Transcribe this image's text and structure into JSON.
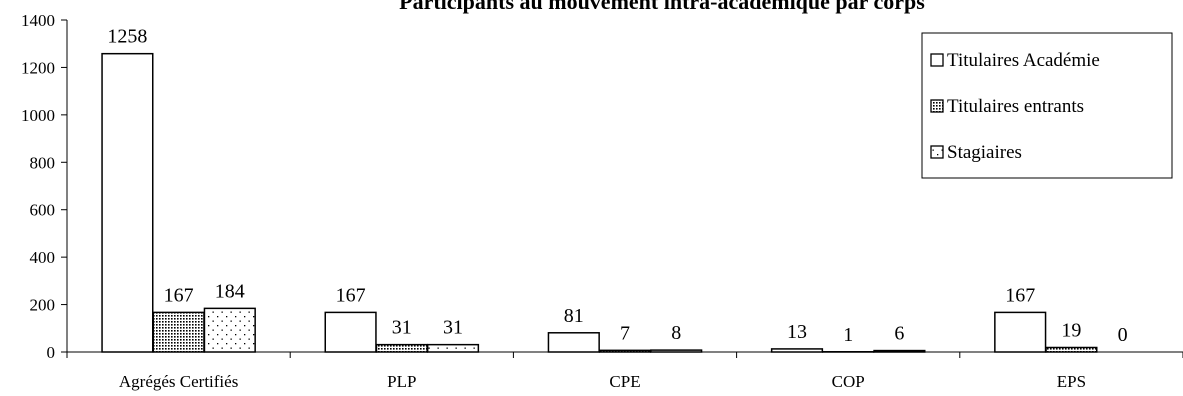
{
  "chart_data": {
    "type": "bar",
    "title": "Participants au mouvement intra-académique par corps",
    "xlabel": "",
    "ylabel": "",
    "ylim": [
      0,
      1400
    ],
    "yticks": [
      "0",
      "200",
      "400",
      "600",
      "800",
      "1000",
      "1200",
      "1400"
    ],
    "categories": [
      "Agrégés Certifiés",
      "PLP",
      "CPE",
      "COP",
      "EPS"
    ],
    "series": [
      {
        "name": "Titulaires Académie",
        "values": [
          1258,
          167,
          81,
          13,
          167
        ],
        "pattern": "blank"
      },
      {
        "name": "Titulaires entrants",
        "values": [
          167,
          31,
          7,
          1,
          19
        ],
        "pattern": "dense-dots"
      },
      {
        "name": "Stagiaires",
        "values": [
          184,
          31,
          8,
          6,
          0
        ],
        "pattern": "sparse-dots"
      }
    ],
    "legend_position": "top-right",
    "grid": false,
    "colors": {
      "stroke": "#000000",
      "fill": "#ffffff"
    }
  }
}
